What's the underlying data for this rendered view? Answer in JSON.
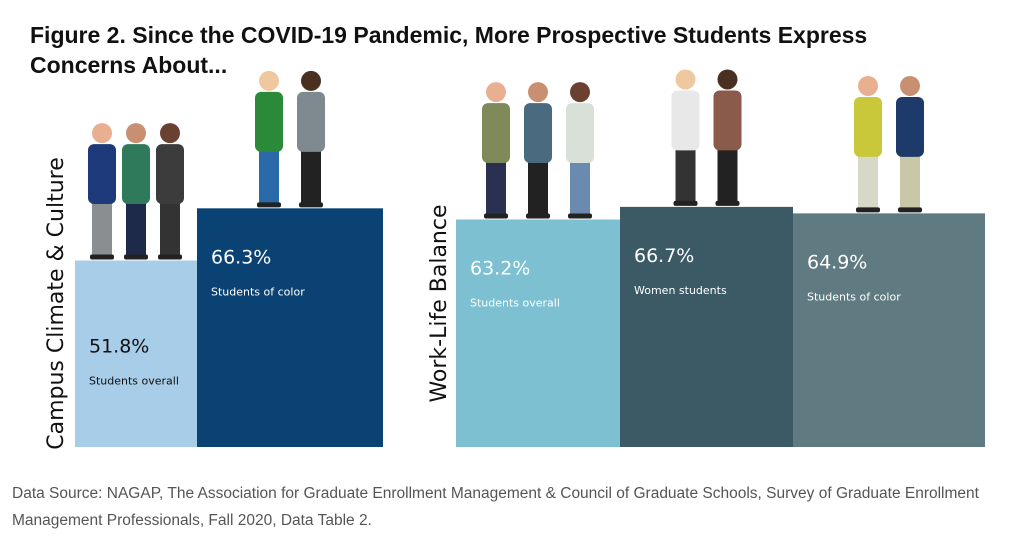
{
  "title": "Figure 2. Since the COVID-19 Pandemic, More Prospective Students Express Concerns About...",
  "source": "Data Source: NAGAP, The Association for Graduate Enrollment Management & Council of Graduate Schools, Survey of Graduate Enrollment Management Professionals, Fall 2020, Data Table 2.",
  "chart_data": [
    {
      "type": "bar",
      "axis_label": "Campus Climate & Culture",
      "categories": [
        "Students overall",
        "Students of color"
      ],
      "values": [
        51.8,
        66.3
      ],
      "value_labels": [
        "51.8%",
        "66.3%"
      ],
      "colors": [
        "#a8cde8",
        "#0b4274"
      ]
    },
    {
      "type": "bar",
      "axis_label": "Work-Life Balance",
      "categories": [
        "Students overall",
        "Women students",
        "Students of color"
      ],
      "values": [
        63.2,
        66.7,
        64.9
      ],
      "value_labels": [
        "63.2%",
        "66.7%",
        "64.9%"
      ],
      "colors": [
        "#7cc0d2",
        "#3b5a66",
        "#5f7a80"
      ]
    }
  ]
}
